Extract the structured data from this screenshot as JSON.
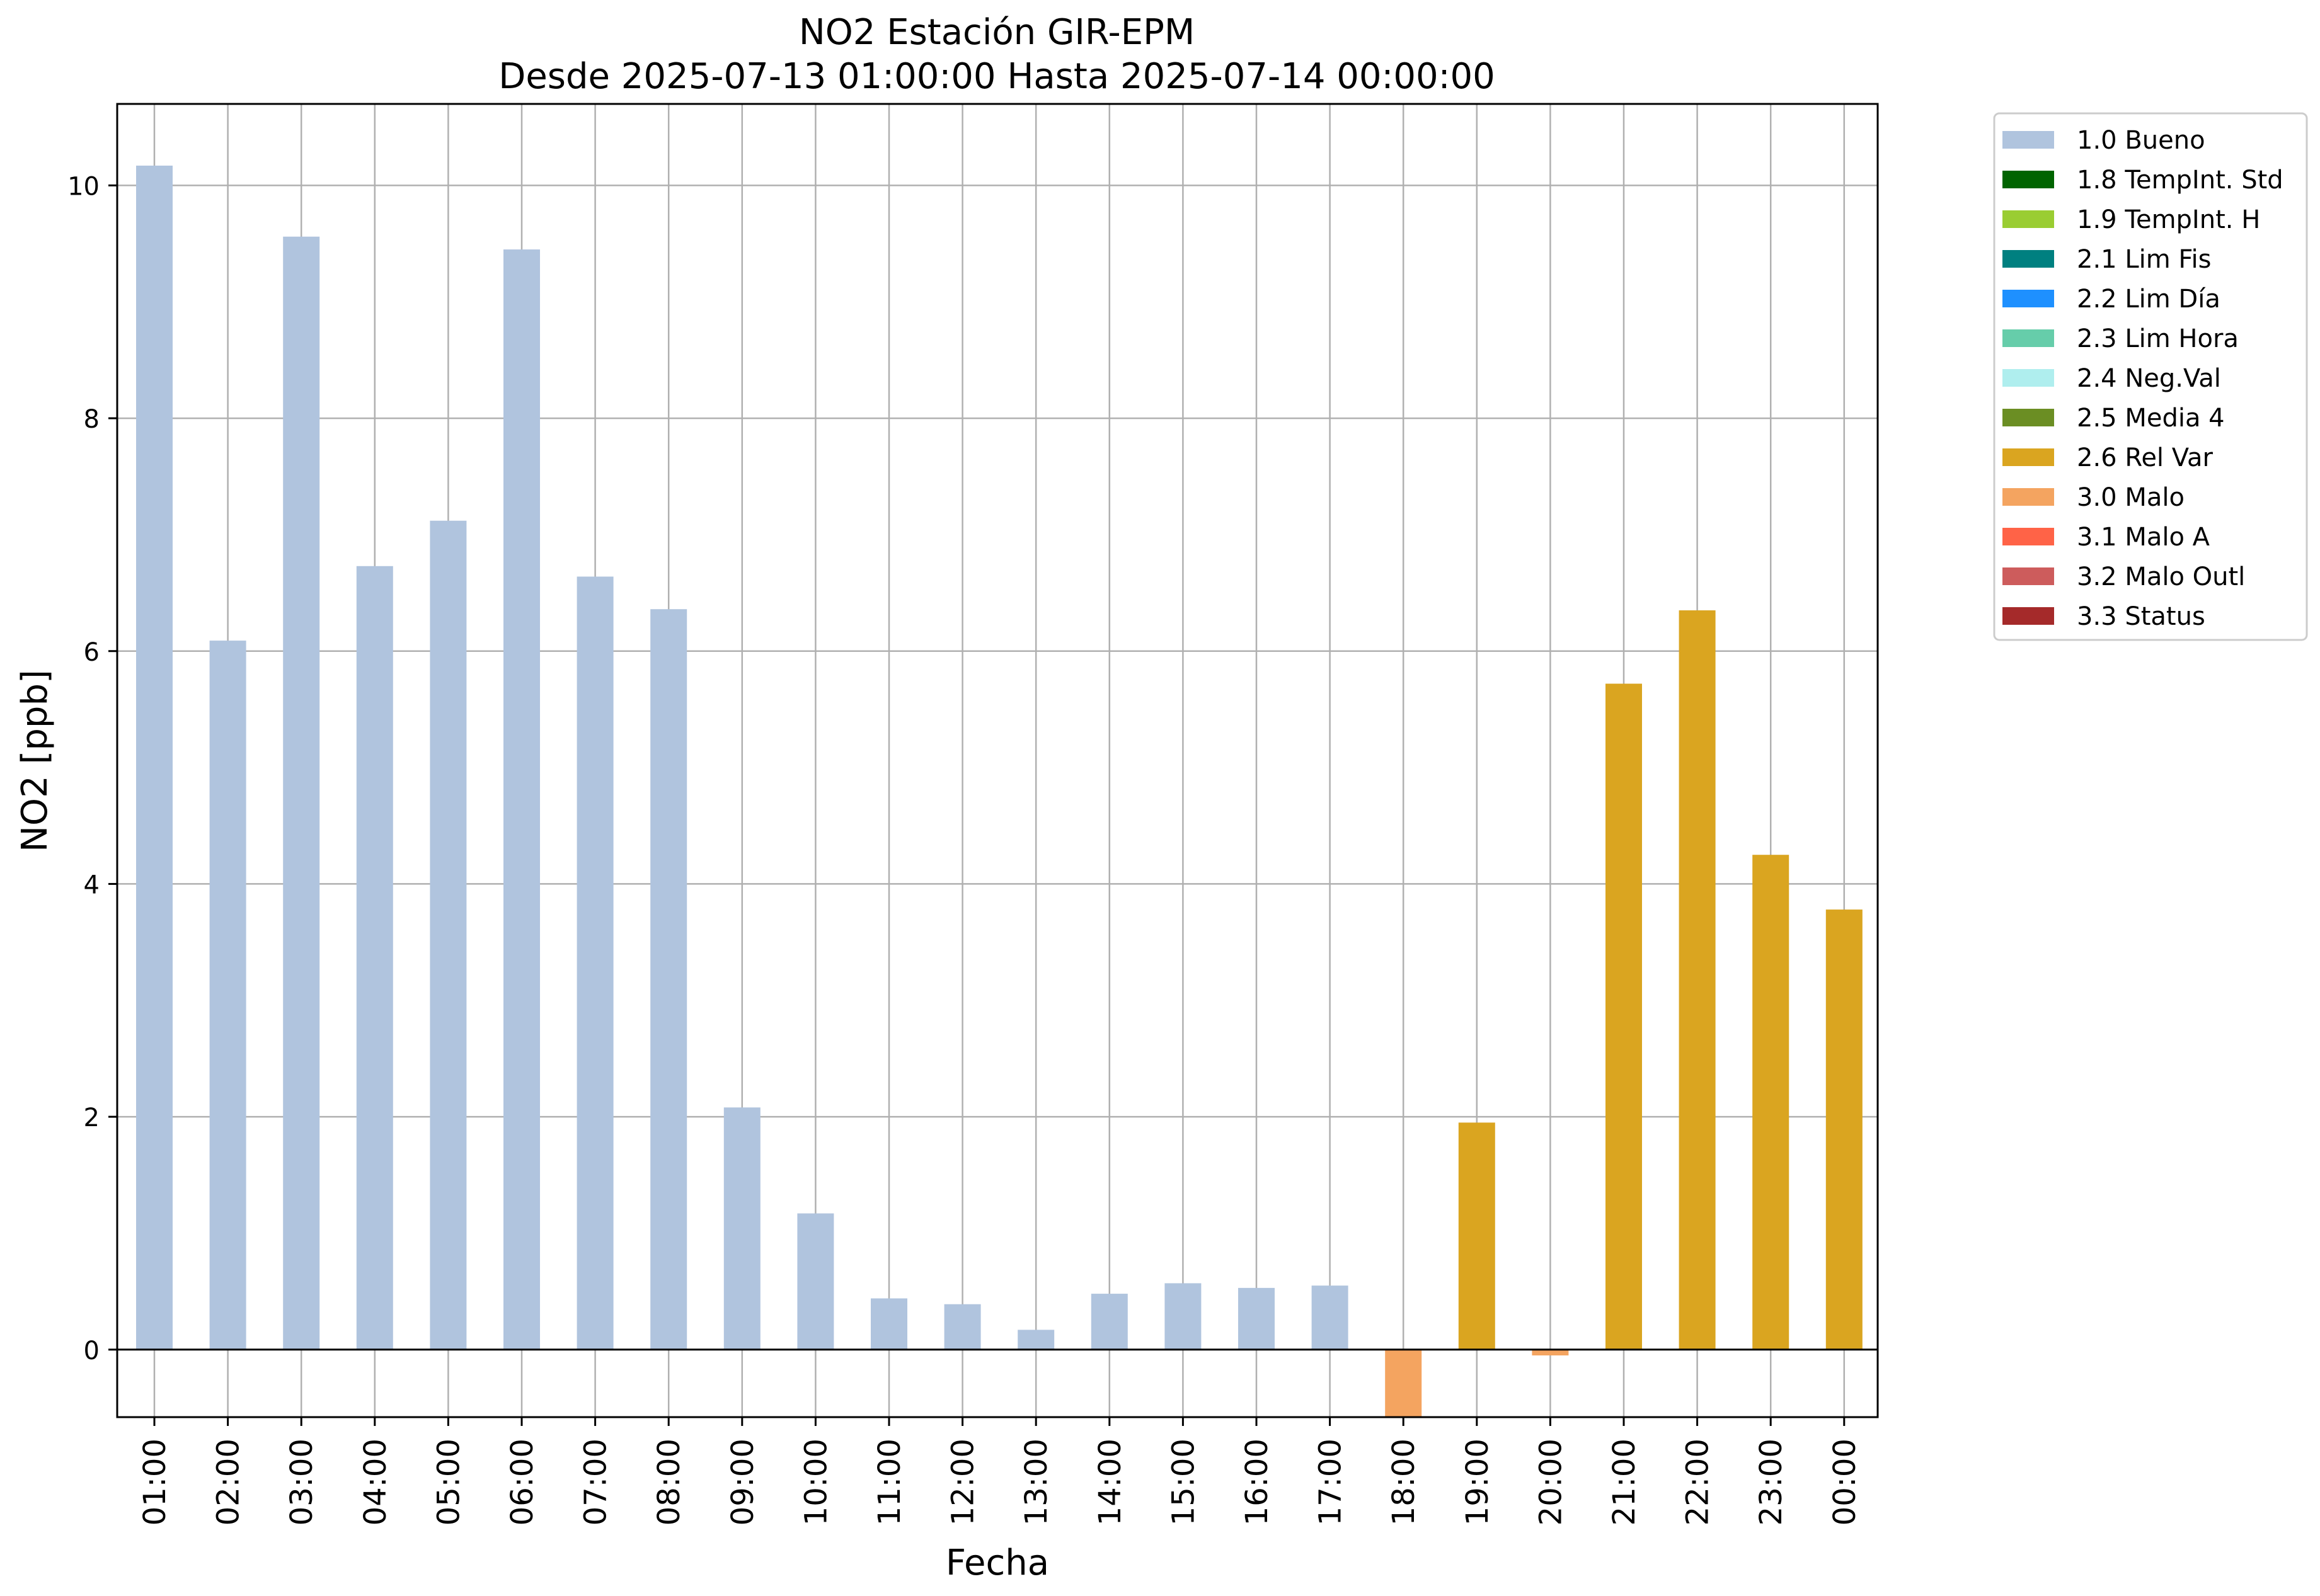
{
  "chart_data": {
    "type": "bar",
    "title": "NO2 Estación GIR-EPM",
    "subtitle": "Desde 2025-07-13 01:00:00 Hasta 2025-07-14 00:00:00",
    "xlabel": "Fecha",
    "ylabel": "NO2 [ppb]",
    "ylim": [
      -0.58,
      10.7
    ],
    "yticks": [
      0,
      2,
      4,
      6,
      8,
      10
    ],
    "grid": true,
    "legend_position": "outside-top-right",
    "categories": [
      "01:00",
      "02:00",
      "03:00",
      "04:00",
      "05:00",
      "06:00",
      "07:00",
      "08:00",
      "09:00",
      "10:00",
      "11:00",
      "12:00",
      "13:00",
      "14:00",
      "15:00",
      "16:00",
      "17:00",
      "18:00",
      "19:00",
      "20:00",
      "21:00",
      "22:00",
      "23:00",
      "00:00"
    ],
    "values": [
      10.17,
      6.09,
      9.56,
      6.73,
      7.12,
      9.45,
      6.64,
      6.36,
      2.08,
      1.17,
      0.44,
      0.39,
      0.17,
      0.48,
      0.57,
      0.53,
      0.55,
      -0.6,
      1.95,
      -0.05,
      5.72,
      6.35,
      4.25,
      3.78
    ],
    "flags": [
      "1.0",
      "1.0",
      "1.0",
      "1.0",
      "1.0",
      "1.0",
      "1.0",
      "1.0",
      "1.0",
      "1.0",
      "1.0",
      "1.0",
      "1.0",
      "1.0",
      "1.0",
      "1.0",
      "1.0",
      "3.0",
      "2.6",
      "3.0",
      "2.6",
      "2.6",
      "2.6",
      "2.6"
    ],
    "legend": [
      {
        "code": "1.0",
        "label": "1.0 Bueno",
        "color": "#b0c4de"
      },
      {
        "code": "1.8",
        "label": "1.8 TempInt. Std",
        "color": "#006400"
      },
      {
        "code": "1.9",
        "label": "1.9 TempInt. H",
        "color": "#9acd32"
      },
      {
        "code": "2.1",
        "label": "2.1 Lim Fis",
        "color": "#008080"
      },
      {
        "code": "2.2",
        "label": "2.2 Lim Día",
        "color": "#1e90ff"
      },
      {
        "code": "2.3",
        "label": "2.3 Lim Hora",
        "color": "#66cdaa"
      },
      {
        "code": "2.4",
        "label": "2.4 Neg.Val",
        "color": "#afeeee"
      },
      {
        "code": "2.5",
        "label": "2.5 Media 4",
        "color": "#6b8e23"
      },
      {
        "code": "2.6",
        "label": "2.6 Rel Var",
        "color": "#daa520"
      },
      {
        "code": "3.0",
        "label": "3.0 Malo",
        "color": "#f4a460"
      },
      {
        "code": "3.1",
        "label": "3.1 Malo A",
        "color": "#ff6347"
      },
      {
        "code": "3.2",
        "label": "3.2 Malo Outl",
        "color": "#cd5c5c"
      },
      {
        "code": "3.3",
        "label": "3.3 Status",
        "color": "#a52a2a"
      }
    ]
  }
}
